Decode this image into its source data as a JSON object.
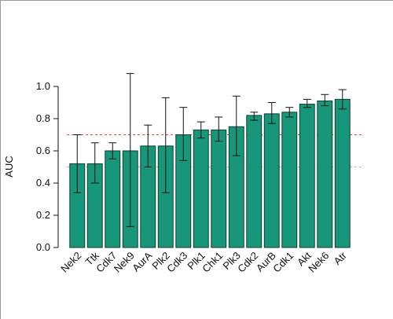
{
  "chart_data": {
    "type": "bar",
    "title": "",
    "xlabel": "",
    "ylabel": "AUC",
    "ylim": [
      0,
      1.0
    ],
    "yticks": [
      "0.0",
      "0.2",
      "0.4",
      "0.6",
      "0.8",
      "1.0"
    ],
    "grid": false,
    "categories": [
      "Nek2",
      "Ttk",
      "Cdk7",
      "Nek9",
      "AurA",
      "Plk2",
      "Cdk3",
      "Plk1",
      "Chk1",
      "Plk3",
      "Cdk2",
      "AurB",
      "Cdk1",
      "Akt",
      "Nek6",
      "Atr"
    ],
    "values": [
      0.52,
      0.52,
      0.6,
      0.6,
      0.63,
      0.63,
      0.7,
      0.73,
      0.73,
      0.75,
      0.82,
      0.83,
      0.84,
      0.89,
      0.91,
      0.92
    ],
    "error_low": [
      0.34,
      0.4,
      0.55,
      0.13,
      0.5,
      0.34,
      0.54,
      0.68,
      0.66,
      0.57,
      0.79,
      0.77,
      0.81,
      0.87,
      0.88,
      0.86
    ],
    "error_high": [
      0.7,
      0.65,
      0.65,
      1.08,
      0.76,
      0.93,
      0.87,
      0.78,
      0.81,
      0.94,
      0.84,
      0.9,
      0.87,
      0.92,
      0.95,
      0.98
    ],
    "reference_lines": [
      {
        "y": 0.7,
        "color": "#d9472b",
        "style": "dashed"
      },
      {
        "y": 0.5,
        "color": "#b8b8b8",
        "style": "dashed"
      }
    ],
    "colors": {
      "bar": "#17967a",
      "bar_edge": "#0d3d30",
      "axis": "#111111"
    }
  }
}
